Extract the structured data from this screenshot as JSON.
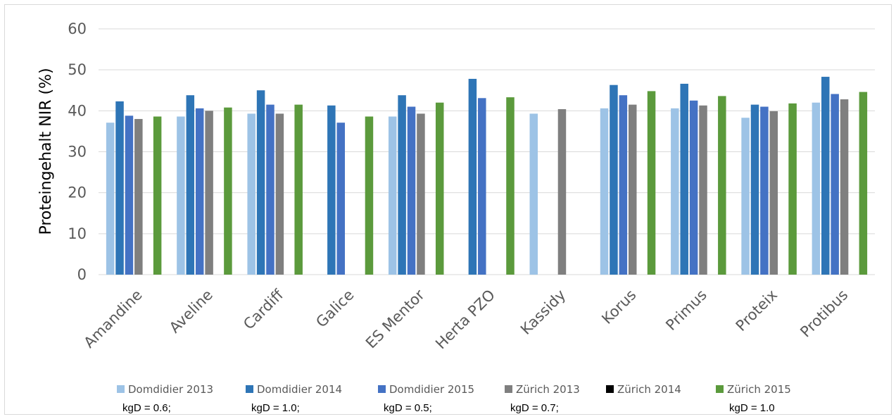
{
  "chart_data": {
    "type": "bar",
    "ylabel": "Proteingehalt NIR (%)",
    "ylim": [
      0,
      60
    ],
    "yticks": [
      0,
      10,
      20,
      30,
      40,
      50,
      60
    ],
    "grid": true,
    "legend_position": "bottom",
    "categories": [
      "Amandine",
      "Aveline",
      "Cardiff",
      "Galice",
      "ES Mentor",
      "Herta PZO",
      "Kassidy",
      "Korus",
      "Primus",
      "Proteix",
      "Protibus"
    ],
    "series": [
      {
        "name": "Domdidier 2013",
        "color": "#9dc3e6",
        "note": "kgD = 0.6;",
        "values": [
          37.1,
          38.6,
          39.3,
          null,
          38.6,
          null,
          39.3,
          40.6,
          40.6,
          38.3,
          42.0
        ]
      },
      {
        "name": "Domdidier 2014",
        "color": "#2e75b6",
        "note": "kgD = 1.0;",
        "values": [
          42.3,
          43.8,
          45.0,
          41.3,
          43.8,
          47.8,
          null,
          46.3,
          46.6,
          41.5,
          48.3
        ]
      },
      {
        "name": "Domdidier 2015",
        "color": "#4472c4",
        "note": "kgD = 0.5;",
        "values": [
          38.8,
          40.6,
          41.5,
          37.1,
          41.0,
          43.1,
          null,
          43.8,
          42.5,
          41.0,
          44.1
        ]
      },
      {
        "name": "Zürich 2013",
        "color": "#7f7f7f",
        "note": "kgD = 0.7;",
        "values": [
          38.0,
          40.0,
          39.3,
          null,
          39.3,
          null,
          40.4,
          41.5,
          41.3,
          39.9,
          42.8
        ]
      },
      {
        "name": "Zürich 2014",
        "color": "#000000",
        "note": "",
        "values": [
          null,
          null,
          null,
          null,
          null,
          null,
          null,
          null,
          null,
          null,
          null
        ]
      },
      {
        "name": "Zürich 2015",
        "color": "#5b9a3c",
        "note": "kgD = 1.0",
        "values": [
          38.6,
          40.8,
          41.5,
          38.6,
          42.0,
          43.3,
          null,
          44.8,
          43.6,
          41.8,
          44.6
        ]
      }
    ]
  }
}
